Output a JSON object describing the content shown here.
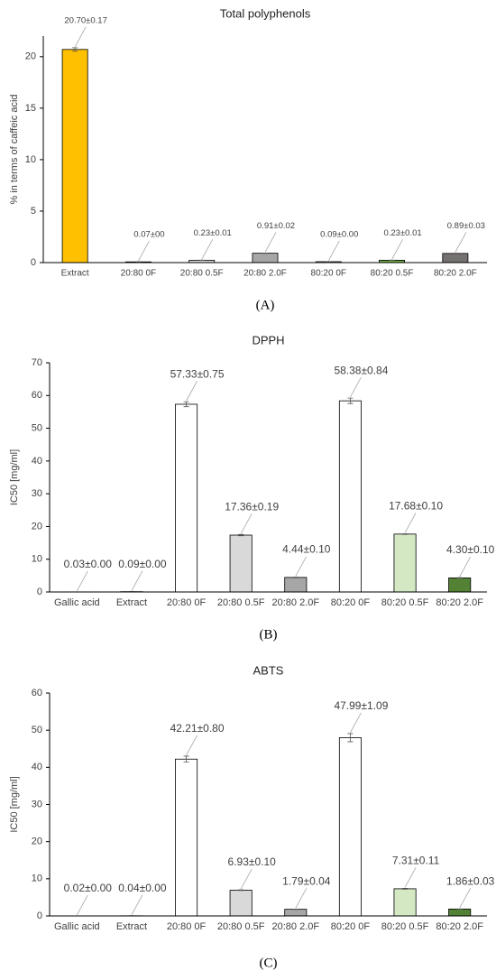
{
  "chart_data": [
    {
      "type": "bar",
      "title": "Total polyphenols",
      "y_label": "% in terms of caffeic acid",
      "caption": "(A)",
      "categories": [
        "Extract",
        "20:80 0F",
        "20:80 0.5F",
        "20:80 2.0F",
        "80:20 0F",
        "80:20 0.5F",
        "80:20 2.0F"
      ],
      "values": [
        20.7,
        0.07,
        0.23,
        0.91,
        0.09,
        0.23,
        0.89
      ],
      "errors": [
        0.17,
        0,
        0.01,
        0.02,
        0.0,
        0.01,
        0.03
      ],
      "value_labels": [
        "20.70±0.17",
        "0.07±00",
        "0.23±0.01",
        "0.91±0.02",
        "0.09±0.00",
        "0.23±0.01",
        "0.89±0.03"
      ],
      "colors": [
        "#ffc000",
        "#ffffff",
        "#d9d9d9",
        "#a6a6a6",
        "#ffffff",
        "#70ad47",
        "#767171"
      ],
      "ylim": [
        0,
        22
      ],
      "yticks": [
        0,
        5,
        10,
        15,
        20
      ]
    },
    {
      "type": "bar",
      "title": "DPPH",
      "y_label": "IC50 [mg/ml]",
      "caption": "(B)",
      "categories": [
        "Gallic acid",
        "Extract",
        "20:80 0F",
        "20:80 0.5F",
        "20:80 2.0F",
        "80:20 0F",
        "80:20 0.5F",
        "80:20 2.0F"
      ],
      "values": [
        0.03,
        0.09,
        57.33,
        17.36,
        4.44,
        58.38,
        17.68,
        4.3
      ],
      "errors": [
        0.0,
        0.0,
        0.75,
        0.19,
        0.1,
        0.84,
        0.1,
        0.1
      ],
      "value_labels": [
        "0.03±0.00",
        "0.09±0.00",
        "57.33±0.75",
        "17.36±0.19",
        "4.44±0.10",
        "58.38±0.84",
        "17.68±0.10",
        "4.30±0.10"
      ],
      "colors": [
        "#ffffff",
        "#ffffff",
        "#ffffff",
        "#d9d9d9",
        "#a6a6a6",
        "#ffffff",
        "#d5e8c4",
        "#548235"
      ],
      "ylim": [
        0,
        70
      ],
      "yticks": [
        0,
        10,
        20,
        30,
        40,
        50,
        60,
        70
      ]
    },
    {
      "type": "bar",
      "title": "ABTS",
      "y_label": "IC50 [mg/ml]",
      "caption": "(C)",
      "categories": [
        "Gallic acid",
        "Extract",
        "20:80 0F",
        "20:80 0.5F",
        "20:80 2.0F",
        "80:20 0F",
        "80:20 0.5F",
        "80:20 2.0F"
      ],
      "values": [
        0.02,
        0.04,
        42.21,
        6.93,
        1.79,
        47.99,
        7.31,
        1.86
      ],
      "errors": [
        0.0,
        0.0,
        0.8,
        0.1,
        0.04,
        1.09,
        0.11,
        0.03
      ],
      "value_labels": [
        "0.02±0.00",
        "0.04±0.00",
        "42.21±0.80",
        "6.93±0.10",
        "1.79±0.04",
        "47.99±1.09",
        "7.31±0.11",
        "1.86±0.03"
      ],
      "colors": [
        "#ffffff",
        "#ffffff",
        "#ffffff",
        "#d9d9d9",
        "#a6a6a6",
        "#ffffff",
        "#d5e8c4",
        "#548235"
      ],
      "ylim": [
        0,
        60
      ],
      "yticks": [
        0,
        10,
        20,
        30,
        40,
        50,
        60
      ]
    }
  ]
}
